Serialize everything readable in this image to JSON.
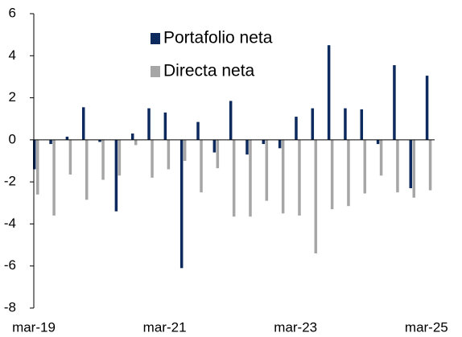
{
  "chart_data": {
    "type": "bar",
    "categories": [
      "mar-19",
      null,
      null,
      null,
      null,
      null,
      null,
      null,
      "mar-21",
      null,
      null,
      null,
      null,
      null,
      null,
      null,
      "mar-23",
      null,
      null,
      null,
      null,
      null,
      null,
      null,
      "mar-25"
    ],
    "series": [
      {
        "name": "Portafolio neta",
        "color": "#0d2a5e",
        "values": [
          -1.4,
          -0.2,
          0.15,
          1.55,
          -0.1,
          -3.4,
          0.3,
          1.5,
          1.3,
          -6.1,
          0.85,
          -0.6,
          1.85,
          -0.7,
          -0.2,
          -0.4,
          1.1,
          1.5,
          4.5,
          1.5,
          1.45,
          -0.2,
          3.55,
          -2.3,
          3.05
        ]
      },
      {
        "name": "Directa neta",
        "color": "#a6a6a6",
        "values": [
          -2.6,
          -3.6,
          -1.65,
          -2.85,
          -1.9,
          -1.7,
          -0.25,
          -1.8,
          -1.4,
          -1.0,
          -2.5,
          -1.35,
          -3.65,
          -3.65,
          -2.9,
          -3.5,
          -3.6,
          -5.4,
          -3.3,
          -3.15,
          -2.55,
          -1.7,
          -2.5,
          -2.75,
          -2.4
        ]
      }
    ],
    "ylim": [
      -8,
      6
    ],
    "yticks": [
      -8,
      -6,
      -4,
      -2,
      0,
      2,
      4,
      6
    ],
    "grid": false
  }
}
